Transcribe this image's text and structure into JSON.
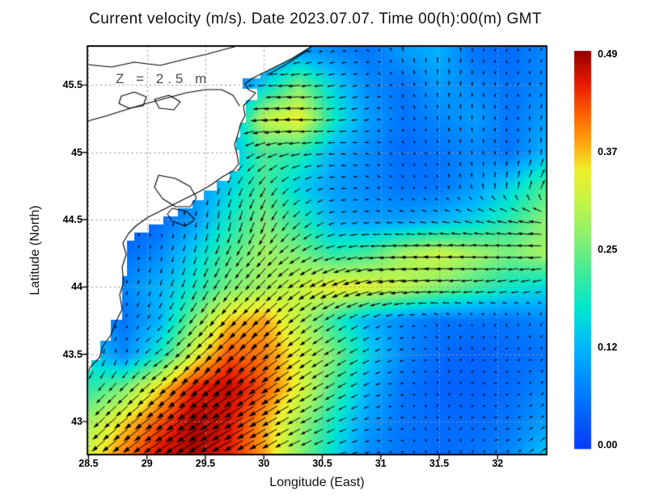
{
  "chart_data": {
    "type": "heatmap",
    "subtype": "current-speed-heatmap-with-quiver-vectors-and-coastline",
    "title": "Current velocity (m/s). Date 2023.07.07. Time 00(h):00(m) GMT",
    "depth_label": "Z = 2.5 m",
    "xlabel": "Longitude (East)",
    "ylabel": "Latitude (North)",
    "units": "m/s",
    "xlim": [
      28.49,
      32.42
    ],
    "ylim": [
      42.755,
      45.79
    ],
    "x_tick_labels": [
      "28.5",
      "29",
      "29.5",
      "30",
      "30.5",
      "31",
      "31.5",
      "32"
    ],
    "y_tick_labels": [
      "45.5",
      "45",
      "44.5",
      "44",
      "43.5",
      "43"
    ],
    "gridlines": {
      "style": "dotted",
      "color": "#999999"
    },
    "grid_lon": [
      28.5,
      28.8,
      29.1,
      29.4,
      29.7,
      30.0,
      30.3,
      30.6,
      30.9,
      31.2,
      31.5,
      31.8,
      32.1,
      32.4
    ],
    "grid_lat": [
      45.75,
      45.5,
      45.25,
      45.0,
      44.75,
      44.5,
      44.25,
      44.0,
      43.75,
      43.5,
      43.25,
      43.0,
      42.75
    ],
    "speed": [
      [
        0,
        0,
        0,
        0,
        0,
        0.08,
        0.1,
        0.08,
        0.06,
        0.1,
        0.12,
        0.06,
        0.05,
        0.08
      ],
      [
        0,
        0,
        0,
        0,
        0.05,
        0.15,
        0.25,
        0.15,
        0.08,
        0.06,
        0.1,
        0.08,
        0.06,
        0.08
      ],
      [
        0,
        0,
        0,
        0,
        0.1,
        0.3,
        0.34,
        0.18,
        0.1,
        0.06,
        0.08,
        0.1,
        0.06,
        0.1
      ],
      [
        0,
        0,
        0,
        0,
        0.12,
        0.22,
        0.2,
        0.12,
        0.08,
        0.05,
        0.06,
        0.08,
        0.06,
        0.12
      ],
      [
        0,
        0,
        0.05,
        0.08,
        0.15,
        0.22,
        0.15,
        0.1,
        0.08,
        0.06,
        0.06,
        0.1,
        0.15,
        0.22
      ],
      [
        0,
        0.03,
        0.05,
        0.1,
        0.18,
        0.25,
        0.2,
        0.12,
        0.1,
        0.1,
        0.12,
        0.15,
        0.2,
        0.26
      ],
      [
        0,
        0.05,
        0.08,
        0.15,
        0.22,
        0.28,
        0.25,
        0.2,
        0.22,
        0.28,
        0.31,
        0.28,
        0.25,
        0.28
      ],
      [
        0,
        0.08,
        0.12,
        0.18,
        0.25,
        0.28,
        0.31,
        0.34,
        0.33,
        0.3,
        0.26,
        0.22,
        0.18,
        0.16
      ],
      [
        0.1,
        0.06,
        0.12,
        0.25,
        0.36,
        0.38,
        0.3,
        0.2,
        0.12,
        0.08,
        0.06,
        0.06,
        0.06,
        0.08
      ],
      [
        0.15,
        0.08,
        0.18,
        0.32,
        0.42,
        0.4,
        0.33,
        0.25,
        0.15,
        0.08,
        0.05,
        0.04,
        0.05,
        0.06
      ],
      [
        0.2,
        0.25,
        0.35,
        0.45,
        0.47,
        0.42,
        0.33,
        0.22,
        0.12,
        0.06,
        0.04,
        0.04,
        0.05,
        0.08
      ],
      [
        0.28,
        0.35,
        0.42,
        0.48,
        0.46,
        0.38,
        0.28,
        0.18,
        0.1,
        0.06,
        0.05,
        0.05,
        0.06,
        0.1
      ],
      [
        0.32,
        0.4,
        0.46,
        0.48,
        0.45,
        0.38,
        0.26,
        0.16,
        0.08,
        0.06,
        0.05,
        0.06,
        0.08,
        0.14
      ]
    ],
    "direction_deg": [
      [
        200,
        200,
        200,
        200,
        200,
        195,
        200,
        195,
        160,
        100,
        90,
        80,
        80,
        75
      ],
      [
        210,
        210,
        210,
        210,
        200,
        185,
        185,
        190,
        200,
        120,
        90,
        85,
        80,
        75
      ],
      [
        230,
        230,
        230,
        230,
        215,
        185,
        180,
        185,
        190,
        110,
        95,
        90,
        85,
        80
      ],
      [
        240,
        240,
        240,
        240,
        230,
        205,
        190,
        180,
        170,
        120,
        100,
        95,
        90,
        85
      ],
      [
        250,
        250,
        250,
        258,
        250,
        240,
        215,
        185,
        160,
        130,
        110,
        100,
        80,
        60
      ],
      [
        255,
        258,
        260,
        262,
        258,
        250,
        225,
        200,
        180,
        172,
        168,
        165,
        168,
        172
      ],
      [
        250,
        255,
        258,
        252,
        242,
        230,
        212,
        196,
        186,
        180,
        178,
        178,
        180,
        182
      ],
      [
        245,
        250,
        252,
        246,
        236,
        226,
        216,
        206,
        196,
        188,
        185,
        188,
        192,
        196
      ],
      [
        250,
        230,
        230,
        232,
        228,
        222,
        218,
        212,
        206,
        196,
        130,
        95,
        85,
        75
      ],
      [
        255,
        270,
        215,
        222,
        220,
        218,
        215,
        211,
        207,
        195,
        150,
        30,
        20,
        45
      ],
      [
        230,
        225,
        220,
        218,
        216,
        214,
        212,
        209,
        204,
        180,
        80,
        20,
        10,
        40
      ],
      [
        225,
        220,
        216,
        214,
        212,
        210,
        208,
        205,
        200,
        170,
        90,
        30,
        15,
        35
      ],
      [
        220,
        218,
        214,
        212,
        210,
        208,
        205,
        200,
        195,
        160,
        100,
        50,
        30,
        40
      ]
    ],
    "colorbar": {
      "min": 0.0,
      "max": 0.49,
      "tick_labels": [
        "0.49",
        "0.37",
        "0.25",
        "0.12",
        "0.00"
      ]
    },
    "colormap_stops": [
      [
        0.0,
        "#0A3CFF"
      ],
      [
        0.13,
        "#0078FF"
      ],
      [
        0.25,
        "#00B4FF"
      ],
      [
        0.35,
        "#00E6D2"
      ],
      [
        0.45,
        "#46EB96"
      ],
      [
        0.52,
        "#82F078"
      ],
      [
        0.62,
        "#C3F546"
      ],
      [
        0.7,
        "#F0F02D"
      ],
      [
        0.76,
        "#FFAF14"
      ],
      [
        0.84,
        "#FF6400"
      ],
      [
        0.92,
        "#E61900"
      ],
      [
        1.0,
        "#960000"
      ]
    ]
  }
}
